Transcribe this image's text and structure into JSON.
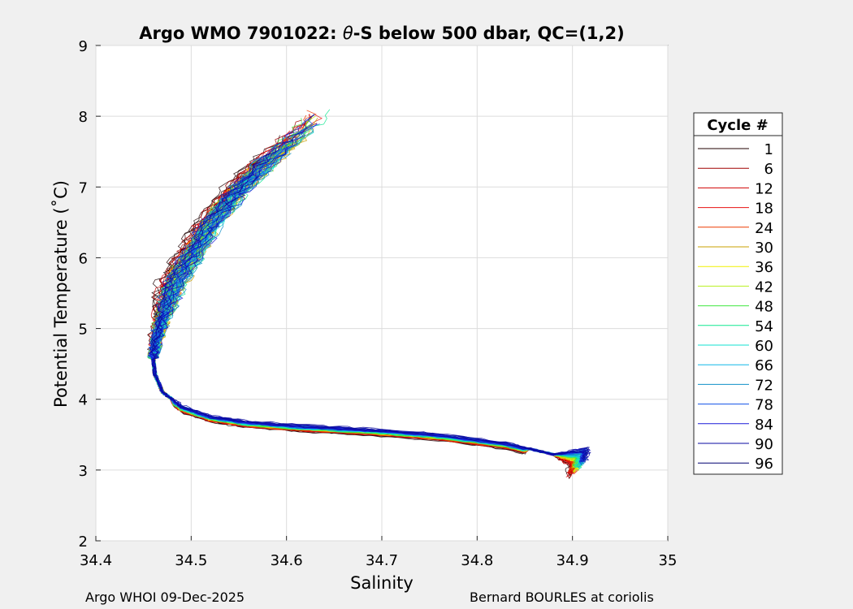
{
  "chart_data": {
    "type": "line",
    "title_prefix": "Argo WMO 7901022: ",
    "title_theta": "θ",
    "title_suffix": "-S below 500 dbar,  QC=(1,2)",
    "xlabel": "Salinity",
    "ylabel": "Potential Temperature (˚C)",
    "xlim": [
      34.4,
      35
    ],
    "ylim": [
      2,
      9
    ],
    "xticks": [
      "34.4",
      "34.5",
      "34.6",
      "34.7",
      "34.8",
      "34.9",
      "35"
    ],
    "yticks": [
      "2",
      "3",
      "4",
      "5",
      "6",
      "7",
      "8",
      "9"
    ],
    "grid": true,
    "legend": {
      "title": "Cycle #",
      "placement": "right-outside",
      "entries": [
        {
          "label": "1",
          "color": "#200000"
        },
        {
          "label": "6",
          "color": "#a00000"
        },
        {
          "label": "12",
          "color": "#d00000"
        },
        {
          "label": "18",
          "color": "#e81010"
        },
        {
          "label": "24",
          "color": "#ee3a00"
        },
        {
          "label": "30",
          "color": "#c8a000"
        },
        {
          "label": "36",
          "color": "#f0f000"
        },
        {
          "label": "42",
          "color": "#b8f020"
        },
        {
          "label": "48",
          "color": "#40e840"
        },
        {
          "label": "54",
          "color": "#10e890"
        },
        {
          "label": "60",
          "color": "#10e0d0"
        },
        {
          "label": "66",
          "color": "#10b8e8"
        },
        {
          "label": "72",
          "color": "#1090c8"
        },
        {
          "label": "78",
          "color": "#1050e8"
        },
        {
          "label": "84",
          "color": "#1a1ad8"
        },
        {
          "label": "90",
          "color": "#0a0aa0"
        },
        {
          "label": "96",
          "color": "#000070"
        }
      ]
    },
    "series_curve": {
      "deep_branch": [
        [
          34.897,
          2.88
        ],
        [
          34.9,
          3.05
        ],
        [
          34.88,
          3.22
        ],
        [
          34.83,
          3.38
        ],
        [
          34.76,
          3.5
        ],
        [
          34.69,
          3.57
        ],
        [
          34.62,
          3.62
        ],
        [
          34.56,
          3.68
        ],
        [
          34.52,
          3.76
        ],
        [
          34.49,
          3.9
        ],
        [
          34.47,
          4.1
        ],
        [
          34.462,
          4.35
        ],
        [
          34.46,
          4.6
        ]
      ],
      "upper_branch": [
        [
          34.46,
          4.6
        ],
        [
          34.465,
          4.9
        ],
        [
          34.472,
          5.2
        ],
        [
          34.482,
          5.6
        ],
        [
          34.5,
          6.0
        ],
        [
          34.52,
          6.45
        ],
        [
          34.55,
          6.95
        ],
        [
          34.58,
          7.35
        ],
        [
          34.61,
          7.7
        ],
        [
          34.63,
          7.95
        ]
      ]
    }
  },
  "footer": {
    "left": "Argo WHOI 09-Dec-2025",
    "right": "Bernard BOURLES at coriolis"
  }
}
